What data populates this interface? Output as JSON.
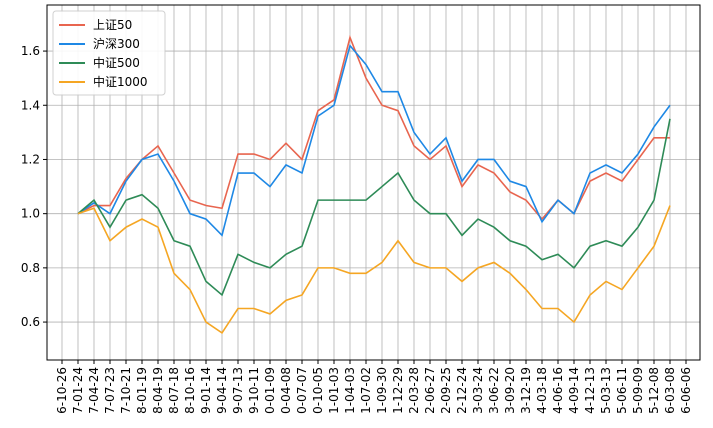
{
  "chart_data": {
    "type": "line",
    "categories": [
      "6-10-26",
      "7-01-24",
      "7-04-24",
      "7-07-23",
      "7-10-21",
      "8-01-19",
      "8-04-19",
      "8-07-18",
      "8-10-16",
      "9-01-14",
      "9-04-14",
      "9-07-13",
      "9-10-11",
      "0-01-09",
      "0-04-08",
      "0-07-07",
      "0-10-05",
      "1-01-03",
      "1-04-03",
      "1-07-02",
      "1-09-30",
      "1-12-29",
      "2-03-28",
      "2-06-27",
      "2-09-25",
      "2-12-24",
      "3-03-24",
      "3-06-22",
      "3-09-20",
      "3-12-19",
      "4-03-18",
      "4-06-16",
      "4-09-14",
      "4-12-13",
      "5-03-13",
      "5-06-11",
      "5-09-09",
      "5-12-08",
      "6-03-08",
      "6-06-06"
    ],
    "series": [
      {
        "name": "上证50",
        "color": "#e8654f",
        "values": [
          null,
          1.0,
          1.03,
          1.03,
          1.13,
          1.2,
          1.25,
          1.15,
          1.05,
          1.03,
          1.02,
          1.22,
          1.22,
          1.2,
          1.26,
          1.2,
          1.38,
          1.42,
          1.65,
          1.5,
          1.4,
          1.38,
          1.25,
          1.2,
          1.25,
          1.1,
          1.18,
          1.15,
          1.08,
          1.05,
          0.98,
          1.05,
          1.0,
          1.12,
          1.15,
          1.12,
          1.2,
          1.28,
          1.28,
          null
        ]
      },
      {
        "name": "沪深300",
        "color": "#1e88e5",
        "values": [
          null,
          1.0,
          1.04,
          1.0,
          1.12,
          1.2,
          1.22,
          1.12,
          1.0,
          0.98,
          0.92,
          1.15,
          1.15,
          1.1,
          1.18,
          1.15,
          1.36,
          1.4,
          1.62,
          1.55,
          1.45,
          1.45,
          1.3,
          1.22,
          1.28,
          1.12,
          1.2,
          1.2,
          1.12,
          1.1,
          0.97,
          1.05,
          1.0,
          1.15,
          1.18,
          1.15,
          1.22,
          1.32,
          1.4,
          null
        ]
      },
      {
        "name": "中证500",
        "color": "#2e8b57",
        "values": [
          null,
          1.0,
          1.05,
          0.95,
          1.05,
          1.07,
          1.02,
          0.9,
          0.88,
          0.75,
          0.7,
          0.85,
          0.82,
          0.8,
          0.85,
          0.88,
          1.05,
          1.05,
          1.05,
          1.05,
          1.1,
          1.15,
          1.05,
          1.0,
          1.0,
          0.92,
          0.98,
          0.95,
          0.9,
          0.88,
          0.83,
          0.85,
          0.8,
          0.88,
          0.9,
          0.88,
          0.95,
          1.05,
          1.35,
          null
        ]
      },
      {
        "name": "中证1000",
        "color": "#f5a623",
        "values": [
          null,
          1.0,
          1.02,
          0.9,
          0.95,
          0.98,
          0.95,
          0.78,
          0.72,
          0.6,
          0.56,
          0.65,
          0.65,
          0.63,
          0.68,
          0.7,
          0.8,
          0.8,
          0.78,
          0.78,
          0.82,
          0.9,
          0.82,
          0.8,
          0.8,
          0.75,
          0.8,
          0.82,
          0.78,
          0.72,
          0.65,
          0.65,
          0.6,
          0.7,
          0.75,
          0.72,
          0.8,
          0.88,
          1.03,
          null
        ]
      }
    ],
    "ylim": [
      0.46,
      1.77
    ],
    "yticks": [
      {
        "value": 0.6,
        "label": "0.6"
      },
      {
        "value": 0.8,
        "label": "0.8"
      },
      {
        "value": 1.0,
        "label": "1.0"
      },
      {
        "value": 1.2,
        "label": "1.2"
      },
      {
        "value": 1.4,
        "label": "1.4"
      },
      {
        "value": 1.6,
        "label": "1.6"
      }
    ],
    "grid": true,
    "legend": "upper left"
  }
}
